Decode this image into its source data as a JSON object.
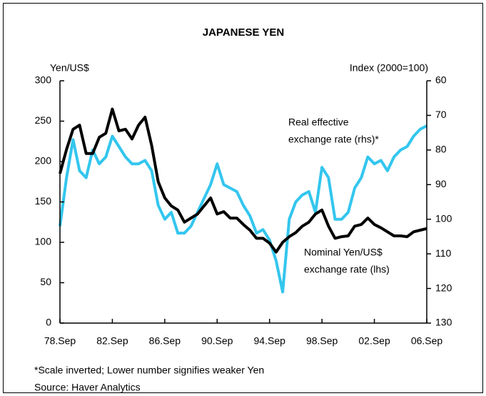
{
  "chart_data": {
    "type": "line",
    "title": "JAPANESE YEN",
    "y_label": "Yen/US$",
    "y2_label": "Index (2000=100)",
    "annotations": [
      "Real effective",
      "exchange rate (rhs)*",
      "Nominal Yen/US$",
      "exchange rate (lhs)"
    ],
    "footnotes": [
      "*Scale inverted; Lower number signifies weaker Yen",
      "Source: Haver Analytics"
    ],
    "x": [
      1978.75,
      1979.25,
      1979.75,
      1980.25,
      1980.75,
      1981.25,
      1981.75,
      1982.25,
      1982.75,
      1983.25,
      1983.75,
      1984.25,
      1984.75,
      1985.25,
      1985.75,
      1986.25,
      1986.75,
      1987.25,
      1987.75,
      1988.25,
      1988.75,
      1989.25,
      1989.75,
      1990.25,
      1990.75,
      1991.25,
      1991.75,
      1992.25,
      1992.75,
      1993.25,
      1993.75,
      1994.25,
      1994.75,
      1995.25,
      1995.75,
      1996.25,
      1996.75,
      1997.25,
      1997.75,
      1998.25,
      1998.75,
      1999.25,
      1999.75,
      2000.25,
      2000.75,
      2001.25,
      2001.75,
      2002.25,
      2002.75,
      2003.25,
      2003.75,
      2004.25,
      2004.75,
      2005.25,
      2005.75,
      2006.25,
      2006.75
    ],
    "series": [
      {
        "color": "#33c6ee",
        "axis": "y2",
        "values": [
          102,
          88,
          77,
          86,
          88,
          80,
          84,
          82,
          76,
          79,
          82,
          84,
          84,
          83,
          86,
          96,
          100,
          98,
          104,
          104,
          102,
          98,
          94,
          90,
          84,
          90,
          91,
          92,
          96,
          99,
          104,
          103,
          106,
          112,
          121,
          100,
          95,
          93,
          92,
          98,
          85,
          88,
          100,
          100,
          98,
          91,
          88,
          82,
          84,
          83,
          86,
          82,
          80,
          79,
          76,
          74,
          73
        ]
      },
      {
        "color": "#000000",
        "values": [
          185,
          215,
          240,
          245,
          210,
          210,
          230,
          235,
          265,
          238,
          240,
          228,
          245,
          255,
          220,
          175,
          155,
          145,
          140,
          125,
          130,
          135,
          145,
          155,
          135,
          138,
          130,
          130,
          122,
          115,
          105,
          105,
          99,
          88,
          100,
          107,
          112,
          120,
          125,
          135,
          140,
          120,
          105,
          107,
          108,
          120,
          122,
          130,
          122,
          118,
          113,
          108,
          108,
          107,
          113,
          115,
          117
        ]
      }
    ],
    "xlim": [
      1978.75,
      2006.75
    ],
    "xticks": [
      {
        "value": 1978.75,
        "label": "78.Sep"
      },
      {
        "value": 1982.75,
        "label": "82.Sep"
      },
      {
        "value": 1986.75,
        "label": "86.Sep"
      },
      {
        "value": 1990.75,
        "label": "90.Sep"
      },
      {
        "value": 1994.75,
        "label": "94.Sep"
      },
      {
        "value": 1998.75,
        "label": "98.Sep"
      },
      {
        "value": 2002.75,
        "label": "02.Sep"
      },
      {
        "value": 2006.75,
        "label": "06.Sep"
      }
    ],
    "ylim": [
      0,
      300
    ],
    "yticks": [
      0,
      50,
      100,
      150,
      200,
      250,
      300
    ],
    "y2lim": [
      60,
      130
    ],
    "y2ticks": [
      60,
      70,
      80,
      90,
      100,
      110,
      120,
      130
    ],
    "y2_inverted": true
  }
}
